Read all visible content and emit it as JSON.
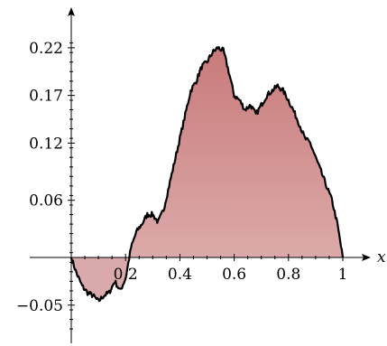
{
  "chart_data": {
    "type": "area",
    "title": "",
    "xlabel": "x",
    "ylabel": "",
    "xlim": [
      0,
      1
    ],
    "ylim": [
      -0.082,
      0.236
    ],
    "xticks": [
      0.2,
      0.4,
      0.6,
      0.8,
      1
    ],
    "xtick_labels": [
      "0.2",
      "0.4",
      "0.6",
      "0.8",
      "1"
    ],
    "yticks": [
      -0.05,
      0.06,
      0.12,
      0.17,
      0.22
    ],
    "ytick_labels": [
      "−0.05",
      "0.06",
      "0.12",
      "0.17",
      "0.22"
    ],
    "grid": false,
    "colors": {
      "fill_top": "#c97a7a",
      "fill_bottom": "#dcaaaa",
      "fill_negative": "#d9a9ab",
      "line": "#000000"
    },
    "x": [
      0,
      0.02,
      0.04,
      0.06,
      0.08,
      0.1,
      0.12,
      0.14,
      0.16,
      0.18,
      0.2,
      0.22,
      0.24,
      0.26,
      0.28,
      0.3,
      0.32,
      0.34,
      0.36,
      0.38,
      0.4,
      0.42,
      0.44,
      0.46,
      0.48,
      0.5,
      0.52,
      0.54,
      0.56,
      0.58,
      0.6,
      0.62,
      0.64,
      0.66,
      0.68,
      0.7,
      0.72,
      0.74,
      0.76,
      0.78,
      0.8,
      0.82,
      0.84,
      0.86,
      0.88,
      0.9,
      0.92,
      0.94,
      0.96,
      0.98,
      1
    ],
    "y": [
      0,
      -0.017,
      -0.03,
      -0.037,
      -0.04,
      -0.046,
      -0.04,
      -0.037,
      -0.025,
      -0.035,
      -0.022,
      0.01,
      0.027,
      0.035,
      0.045,
      0.045,
      0.037,
      0.05,
      0.075,
      0.1,
      0.125,
      0.15,
      0.175,
      0.185,
      0.2,
      0.205,
      0.215,
      0.22,
      0.217,
      0.195,
      0.17,
      0.165,
      0.155,
      0.16,
      0.15,
      0.16,
      0.17,
      0.175,
      0.18,
      0.175,
      0.165,
      0.153,
      0.14,
      0.125,
      0.12,
      0.105,
      0.09,
      0.075,
      0.06,
      0.035,
      0
    ]
  }
}
